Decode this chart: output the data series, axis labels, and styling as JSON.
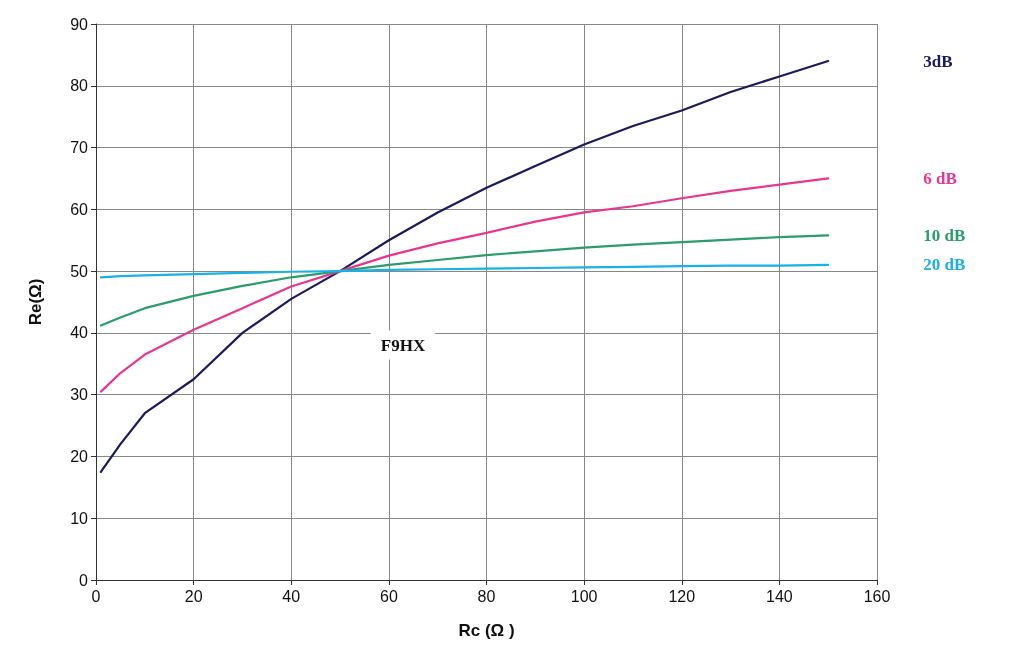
{
  "chart_data": {
    "type": "line",
    "xlabel": "Rc (Ω )",
    "ylabel": "Re(Ω)",
    "x": [
      1,
      5,
      10,
      20,
      30,
      40,
      50,
      60,
      70,
      80,
      90,
      100,
      110,
      120,
      130,
      140,
      150
    ],
    "series": [
      {
        "name": "3dB",
        "color": "#1a1a5e",
        "values": [
          17.5,
          22,
          27,
          32.5,
          40,
          45.5,
          50,
          55,
          59.5,
          63.5,
          67,
          70.5,
          73.5,
          76,
          79,
          81.5,
          84
        ]
      },
      {
        "name": "6 dB",
        "color": "#e8368f",
        "values": [
          30.5,
          33.5,
          36.5,
          40.5,
          44,
          47.5,
          50,
          52.5,
          54.5,
          56.2,
          58,
          59.5,
          60.5,
          61.8,
          63,
          64,
          65
        ]
      },
      {
        "name": "10 dB",
        "color": "#2a9d6a",
        "values": [
          41.2,
          42.5,
          44,
          46,
          47.6,
          49,
          50,
          51,
          51.8,
          52.6,
          53.2,
          53.8,
          54.3,
          54.7,
          55.1,
          55.5,
          55.8
        ]
      },
      {
        "name": "20 dB",
        "color": "#1ab0e8",
        "values": [
          49,
          49.2,
          49.3,
          49.5,
          49.7,
          49.9,
          50,
          50.2,
          50.3,
          50.4,
          50.5,
          50.6,
          50.7,
          50.8,
          50.9,
          50.9,
          51
        ]
      }
    ],
    "xlim": [
      0,
      160
    ],
    "xticks": [
      0,
      20,
      40,
      60,
      80,
      100,
      120,
      140,
      160
    ],
    "ylim": [
      0,
      90
    ],
    "yticks": [
      0,
      10,
      20,
      30,
      40,
      50,
      60,
      70,
      80,
      90
    ],
    "annotations": [
      "F9HX"
    ],
    "grid": true,
    "legend": false,
    "marker": "none",
    "line_style": "solid"
  }
}
